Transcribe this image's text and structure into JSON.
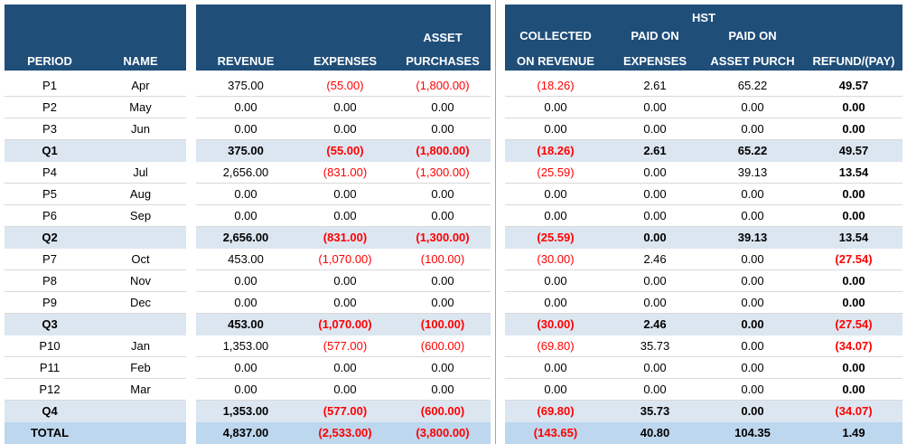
{
  "header": {
    "period": "PERIOD",
    "name": "NAME",
    "revenue": "REVENUE",
    "expenses": "EXPENSES",
    "asset_l1": "ASSET",
    "asset_l2": "PURCHASES",
    "hst": "HST",
    "collected_l1": "COLLECTED",
    "collected_l2": "ON REVENUE",
    "paid_exp_l1": "PAID ON",
    "paid_exp_l2": "EXPENSES",
    "paid_asset_l1": "PAID ON",
    "paid_asset_l2": "ASSET PURCH",
    "refund": "REFUND/(PAY)"
  },
  "rows": [
    {
      "type": "n",
      "period": "P1",
      "name": "Apr",
      "revenue": "375.00",
      "expenses": "(55.00)",
      "asset": "(1,800.00)",
      "collected": "(18.26)",
      "paid_exp": "2.61",
      "paid_asset": "65.22",
      "refund": "49.57"
    },
    {
      "type": "n",
      "period": "P2",
      "name": "May",
      "revenue": "0.00",
      "expenses": "0.00",
      "asset": "0.00",
      "collected": "0.00",
      "paid_exp": "0.00",
      "paid_asset": "0.00",
      "refund": "0.00"
    },
    {
      "type": "n",
      "period": "P3",
      "name": "Jun",
      "revenue": "0.00",
      "expenses": "0.00",
      "asset": "0.00",
      "collected": "0.00",
      "paid_exp": "0.00",
      "paid_asset": "0.00",
      "refund": "0.00"
    },
    {
      "type": "q",
      "period": "Q1",
      "name": "",
      "revenue": "375.00",
      "expenses": "(55.00)",
      "asset": "(1,800.00)",
      "collected": "(18.26)",
      "paid_exp": "2.61",
      "paid_asset": "65.22",
      "refund": "49.57"
    },
    {
      "type": "n",
      "period": "P4",
      "name": "Jul",
      "revenue": "2,656.00",
      "expenses": "(831.00)",
      "asset": "(1,300.00)",
      "collected": "(25.59)",
      "paid_exp": "0.00",
      "paid_asset": "39.13",
      "refund": "13.54"
    },
    {
      "type": "n",
      "period": "P5",
      "name": "Aug",
      "revenue": "0.00",
      "expenses": "0.00",
      "asset": "0.00",
      "collected": "0.00",
      "paid_exp": "0.00",
      "paid_asset": "0.00",
      "refund": "0.00"
    },
    {
      "type": "n",
      "period": "P6",
      "name": "Sep",
      "revenue": "0.00",
      "expenses": "0.00",
      "asset": "0.00",
      "collected": "0.00",
      "paid_exp": "0.00",
      "paid_asset": "0.00",
      "refund": "0.00"
    },
    {
      "type": "q",
      "period": "Q2",
      "name": "",
      "revenue": "2,656.00",
      "expenses": "(831.00)",
      "asset": "(1,300.00)",
      "collected": "(25.59)",
      "paid_exp": "0.00",
      "paid_asset": "39.13",
      "refund": "13.54"
    },
    {
      "type": "n",
      "period": "P7",
      "name": "Oct",
      "revenue": "453.00",
      "expenses": "(1,070.00)",
      "asset": "(100.00)",
      "collected": "(30.00)",
      "paid_exp": "2.46",
      "paid_asset": "0.00",
      "refund": "(27.54)"
    },
    {
      "type": "n",
      "period": "P8",
      "name": "Nov",
      "revenue": "0.00",
      "expenses": "0.00",
      "asset": "0.00",
      "collected": "0.00",
      "paid_exp": "0.00",
      "paid_asset": "0.00",
      "refund": "0.00"
    },
    {
      "type": "n",
      "period": "P9",
      "name": "Dec",
      "revenue": "0.00",
      "expenses": "0.00",
      "asset": "0.00",
      "collected": "0.00",
      "paid_exp": "0.00",
      "paid_asset": "0.00",
      "refund": "0.00"
    },
    {
      "type": "q",
      "period": "Q3",
      "name": "",
      "revenue": "453.00",
      "expenses": "(1,070.00)",
      "asset": "(100.00)",
      "collected": "(30.00)",
      "paid_exp": "2.46",
      "paid_asset": "0.00",
      "refund": "(27.54)"
    },
    {
      "type": "n",
      "period": "P10",
      "name": "Jan",
      "revenue": "1,353.00",
      "expenses": "(577.00)",
      "asset": "(600.00)",
      "collected": "(69.80)",
      "paid_exp": "35.73",
      "paid_asset": "0.00",
      "refund": "(34.07)"
    },
    {
      "type": "n",
      "period": "P11",
      "name": "Feb",
      "revenue": "0.00",
      "expenses": "0.00",
      "asset": "0.00",
      "collected": "0.00",
      "paid_exp": "0.00",
      "paid_asset": "0.00",
      "refund": "0.00"
    },
    {
      "type": "n",
      "period": "P12",
      "name": "Mar",
      "revenue": "0.00",
      "expenses": "0.00",
      "asset": "0.00",
      "collected": "0.00",
      "paid_exp": "0.00",
      "paid_asset": "0.00",
      "refund": "0.00"
    },
    {
      "type": "q",
      "period": "Q4",
      "name": "",
      "revenue": "1,353.00",
      "expenses": "(577.00)",
      "asset": "(600.00)",
      "collected": "(69.80)",
      "paid_exp": "35.73",
      "paid_asset": "0.00",
      "refund": "(34.07)"
    },
    {
      "type": "t",
      "period": "TOTAL",
      "name": "",
      "revenue": "4,837.00",
      "expenses": "(2,533.00)",
      "asset": "(3,800.00)",
      "collected": "(143.65)",
      "paid_exp": "40.80",
      "paid_asset": "104.35",
      "refund": "1.49"
    }
  ],
  "colors": {
    "header_bg": "#1f4e79",
    "quarter_bg": "#dce6f1",
    "total_bg": "#bdd7ee",
    "negative": "#ff0000"
  }
}
